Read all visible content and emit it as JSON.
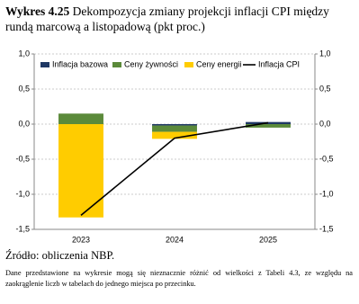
{
  "chart_data": {
    "type": "bar",
    "stacked": true,
    "label": "Wykres 4.25",
    "title": "Dekompozycja zmiany projekcji inflacji CPI między rundą marcową a listopadową (pkt proc.)",
    "categories": [
      "2023",
      "2024",
      "2025"
    ],
    "series": [
      {
        "name": "Inflacja bazowa",
        "type": "bar",
        "color": "#1f3864",
        "values": [
          0.0,
          -0.02,
          0.03
        ]
      },
      {
        "name": "Ceny żywności",
        "type": "bar",
        "color": "#5b8a3a",
        "values": [
          0.15,
          -0.09,
          -0.05
        ]
      },
      {
        "name": "Ceny energii",
        "type": "bar",
        "color": "#ffcc00",
        "values": [
          -1.33,
          -0.1,
          0.0
        ]
      },
      {
        "name": "Inflacja CPI",
        "type": "line",
        "color": "#000000",
        "values": [
          -1.3,
          -0.2,
          0.02
        ]
      }
    ],
    "ylim": [
      -1.5,
      1.0
    ],
    "yticks": [
      {
        "value": 1.0,
        "label": "1,0"
      },
      {
        "value": 0.5,
        "label": "0,5"
      },
      {
        "value": 0.0,
        "label": "0,0"
      },
      {
        "value": -0.5,
        "label": "-0,5"
      },
      {
        "value": -1.0,
        "label": "-1,0"
      },
      {
        "value": -1.5,
        "label": "-1,5"
      }
    ],
    "y2lim": [
      -1.5,
      1.0
    ],
    "y2ticks": [
      {
        "value": 1.0,
        "label": "1,0"
      },
      {
        "value": 0.5,
        "label": "0,5"
      },
      {
        "value": 0.0,
        "label": "0,0"
      },
      {
        "value": -0.5,
        "label": "-0,5"
      },
      {
        "value": -1.0,
        "label": "-1,0"
      },
      {
        "value": -1.5,
        "label": "-1,5"
      }
    ],
    "grid": true,
    "legend": "top"
  },
  "source": "Źródło: obliczenia NBP.",
  "note": "Dane przedstawione na wykresie mogą się nieznacznie różnić od wielkości z Tabeli 4.3, ze względu na zaokrąglenie liczb w tabelach do jednego miejsca po przecinku."
}
